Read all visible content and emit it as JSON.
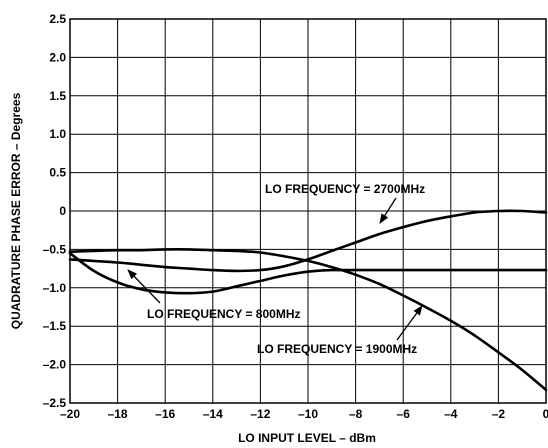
{
  "chart_data": {
    "type": "line",
    "title": "",
    "xlabel": "LO INPUT LEVEL – dBm",
    "ylabel": "QUADRATURE PHASE ERROR – Degrees",
    "xlim": [
      -20,
      0
    ],
    "ylim": [
      -2.5,
      2.5
    ],
    "x_ticks": [
      -20,
      -18,
      -16,
      -14,
      -12,
      -10,
      -8,
      -6,
      -4,
      -2,
      0
    ],
    "x_tick_labels": [
      "–20",
      "–18",
      "–16",
      "–14",
      "–12",
      "–10",
      "–8",
      "–6",
      "–4",
      "–2",
      "0"
    ],
    "y_ticks": [
      2.5,
      2.0,
      1.5,
      1.0,
      0.5,
      0,
      -0.5,
      -1.0,
      -1.5,
      -2.0,
      -2.5
    ],
    "y_tick_labels": [
      "2.5",
      "2.0",
      "1.5",
      "1.0",
      "0.5",
      "0",
      "–0.5",
      "–1.0",
      "–1.5",
      "–2.0",
      "–2.5"
    ],
    "grid": true,
    "series": [
      {
        "name": "LO FREQUENCY = 800MHz",
        "x": [
          -20,
          -19,
          -18,
          -17,
          -16,
          -15,
          -14,
          -13,
          -12,
          -11,
          -10,
          -9,
          -8,
          -7,
          -6,
          -5,
          -4,
          -3,
          -2,
          -1,
          0
        ],
        "y": [
          -0.55,
          -0.78,
          -0.93,
          -1.02,
          -1.06,
          -1.07,
          -1.05,
          -0.98,
          -0.91,
          -0.84,
          -0.79,
          -0.77,
          -0.77,
          -0.77,
          -0.77,
          -0.77,
          -0.77,
          -0.77,
          -0.77,
          -0.77,
          -0.77
        ]
      },
      {
        "name": "LO FREQUENCY = 1900MHz",
        "x": [
          -20,
          -19,
          -18,
          -17,
          -16,
          -15,
          -14,
          -13,
          -12,
          -11,
          -10,
          -9,
          -8,
          -7,
          -6,
          -5,
          -4,
          -3,
          -2,
          -1,
          0
        ],
        "y": [
          -0.53,
          -0.52,
          -0.51,
          -0.51,
          -0.5,
          -0.5,
          -0.51,
          -0.52,
          -0.54,
          -0.59,
          -0.65,
          -0.73,
          -0.83,
          -0.95,
          -1.1,
          -1.26,
          -1.43,
          -1.62,
          -1.84,
          -2.07,
          -2.33
        ]
      },
      {
        "name": "LO FREQUENCY = 2700MHz",
        "x": [
          -20,
          -19,
          -18,
          -17,
          -16,
          -15,
          -14,
          -13,
          -12,
          -11,
          -10,
          -9,
          -8,
          -7,
          -6,
          -5,
          -4,
          -3,
          -2,
          -1,
          0
        ],
        "y": [
          -0.63,
          -0.65,
          -0.67,
          -0.7,
          -0.73,
          -0.75,
          -0.77,
          -0.78,
          -0.77,
          -0.72,
          -0.63,
          -0.52,
          -0.41,
          -0.3,
          -0.21,
          -0.13,
          -0.07,
          -0.02,
          0.0,
          0.0,
          -0.02
        ]
      }
    ],
    "annotations": [
      {
        "text": "LO FREQUENCY = 2700MHz",
        "series": "LO FREQUENCY = 2700MHz"
      },
      {
        "text": "LO FREQUENCY = 800MHz",
        "series": "LO FREQUENCY = 800MHz"
      },
      {
        "text": "LO FREQUENCY = 1900MHz",
        "series": "LO FREQUENCY = 1900MHz"
      }
    ]
  }
}
